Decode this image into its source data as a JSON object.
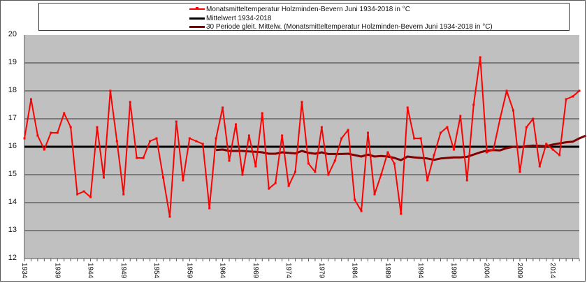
{
  "chart_data": {
    "type": "line",
    "title": "",
    "xlabel": "",
    "ylabel": "",
    "ylim": [
      12,
      20
    ],
    "yticks": [
      12,
      13,
      14,
      15,
      16,
      17,
      18,
      19,
      20
    ],
    "xtick_labels": [
      "1934",
      "1939",
      "1944",
      "1949",
      "1954",
      "1959",
      "1964",
      "1969",
      "1974",
      "1979",
      "1984",
      "1989",
      "1994",
      "1999",
      "2004",
      "2009",
      "2014"
    ],
    "grid": true,
    "legend_position": "top",
    "x": [
      1934,
      1935,
      1936,
      1937,
      1938,
      1939,
      1940,
      1941,
      1942,
      1943,
      1944,
      1945,
      1946,
      1947,
      1948,
      1949,
      1950,
      1951,
      1952,
      1953,
      1954,
      1955,
      1956,
      1957,
      1958,
      1959,
      1960,
      1961,
      1962,
      1963,
      1964,
      1965,
      1966,
      1967,
      1968,
      1969,
      1970,
      1971,
      1972,
      1973,
      1974,
      1975,
      1976,
      1977,
      1978,
      1979,
      1980,
      1981,
      1982,
      1983,
      1984,
      1985,
      1986,
      1987,
      1988,
      1989,
      1990,
      1991,
      1992,
      1993,
      1994,
      1995,
      1996,
      1997,
      1998,
      1999,
      2000,
      2001,
      2002,
      2003,
      2004,
      2005,
      2006,
      2007,
      2008,
      2009,
      2010,
      2011,
      2012,
      2013,
      2014,
      2015,
      2016,
      2017,
      2018
    ],
    "series": [
      {
        "name": "Monatsmitteltemperatur Holzminden-Bevern Juni 1934-2018 in °C",
        "color": "#ff0000",
        "values": [
          16.3,
          17.7,
          16.4,
          15.9,
          16.5,
          16.5,
          17.2,
          16.7,
          14.3,
          14.4,
          14.2,
          16.7,
          14.9,
          18.0,
          16.2,
          14.3,
          17.6,
          15.6,
          15.6,
          16.2,
          16.3,
          14.9,
          13.5,
          16.9,
          14.8,
          16.3,
          16.2,
          16.1,
          13.8,
          16.3,
          17.4,
          15.5,
          16.8,
          15.0,
          16.4,
          15.3,
          17.2,
          14.5,
          14.7,
          16.4,
          14.6,
          15.1,
          17.6,
          15.4,
          15.1,
          16.7,
          15.0,
          15.5,
          16.3,
          16.6,
          14.1,
          13.7,
          16.5,
          14.3,
          15.0,
          15.8,
          15.4,
          13.6,
          17.4,
          16.3,
          16.3,
          14.8,
          15.7,
          16.5,
          16.7,
          15.9,
          17.1,
          14.8,
          17.5,
          19.2,
          15.8,
          15.9,
          17.0,
          18.0,
          17.3,
          15.1,
          16.7,
          17.0,
          15.3,
          16.1,
          15.9,
          15.7,
          17.7,
          17.8,
          18.0
        ]
      },
      {
        "name": "Mittelwert 1934-2018",
        "color": "#000000",
        "values_constant": 16.0
      },
      {
        "name": "30 Periode gleit. Mittelw. (Monatsmitteltemperatur Holzminden-Bevern Juni 1934-2018 in °C)",
        "color": "#800000",
        "start_year": 1963,
        "values": [
          15.88,
          15.9,
          15.85,
          15.85,
          15.85,
          15.83,
          15.82,
          15.8,
          15.75,
          15.75,
          15.8,
          15.78,
          15.76,
          15.85,
          15.78,
          15.75,
          15.8,
          15.74,
          15.74,
          15.74,
          15.75,
          15.7,
          15.65,
          15.72,
          15.65,
          15.67,
          15.65,
          15.6,
          15.52,
          15.65,
          15.62,
          15.6,
          15.58,
          15.53,
          15.58,
          15.6,
          15.62,
          15.62,
          15.64,
          15.72,
          15.8,
          15.86,
          15.88,
          15.87,
          15.95,
          16.0,
          15.98,
          16.02,
          16.04,
          16.03,
          16.02,
          16.08,
          16.12,
          16.16,
          16.18,
          16.3,
          16.4
        ]
      }
    ]
  },
  "legend": {
    "items": [
      {
        "label": "Monatsmitteltemperatur Holzminden-Bevern Juni 1934-2018 in °C"
      },
      {
        "label": "Mittelwert 1934-2018"
      },
      {
        "label": "30 Periode gleit. Mittelw. (Monatsmitteltemperatur Holzminden-Bevern Juni 1934-2018 in °C)"
      }
    ]
  },
  "colors": {
    "plot_bg": "#c0c0c0",
    "gridline": "#333333"
  }
}
